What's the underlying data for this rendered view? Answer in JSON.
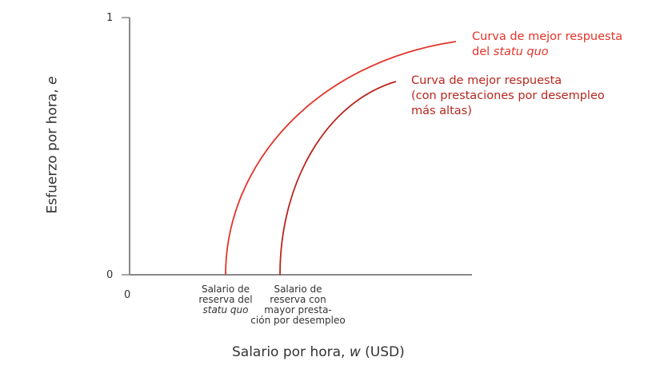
{
  "chart_data": {
    "type": "line",
    "xlabel": "Salario por hora, ",
    "xlabel_var": "w",
    "xlabel_unit": " (USD)",
    "ylabel": "Esfuerzo por hora, ",
    "ylabel_var": "e",
    "y_ticks": [
      "0",
      "1"
    ],
    "x_ticks": [
      "0"
    ],
    "grid": false,
    "x_markers": [
      {
        "lines": [
          "Salario de",
          "reserva del"
        ],
        "italic_line": "statu quo"
      },
      {
        "lines": [
          "Salario de",
          "reserva con",
          "mayor presta-",
          "ción por desempleo"
        ]
      }
    ],
    "series": [
      {
        "name_lines": [
          "Curva de mejor respuesta",
          "del "
        ],
        "name_italic": "statu quo",
        "color": "#e3342a"
      },
      {
        "name_lines": [
          "Curva de mejor respuesta",
          "(con prestaciones por desempleo",
          "más altas)"
        ],
        "color": "#b8261e"
      }
    ]
  }
}
